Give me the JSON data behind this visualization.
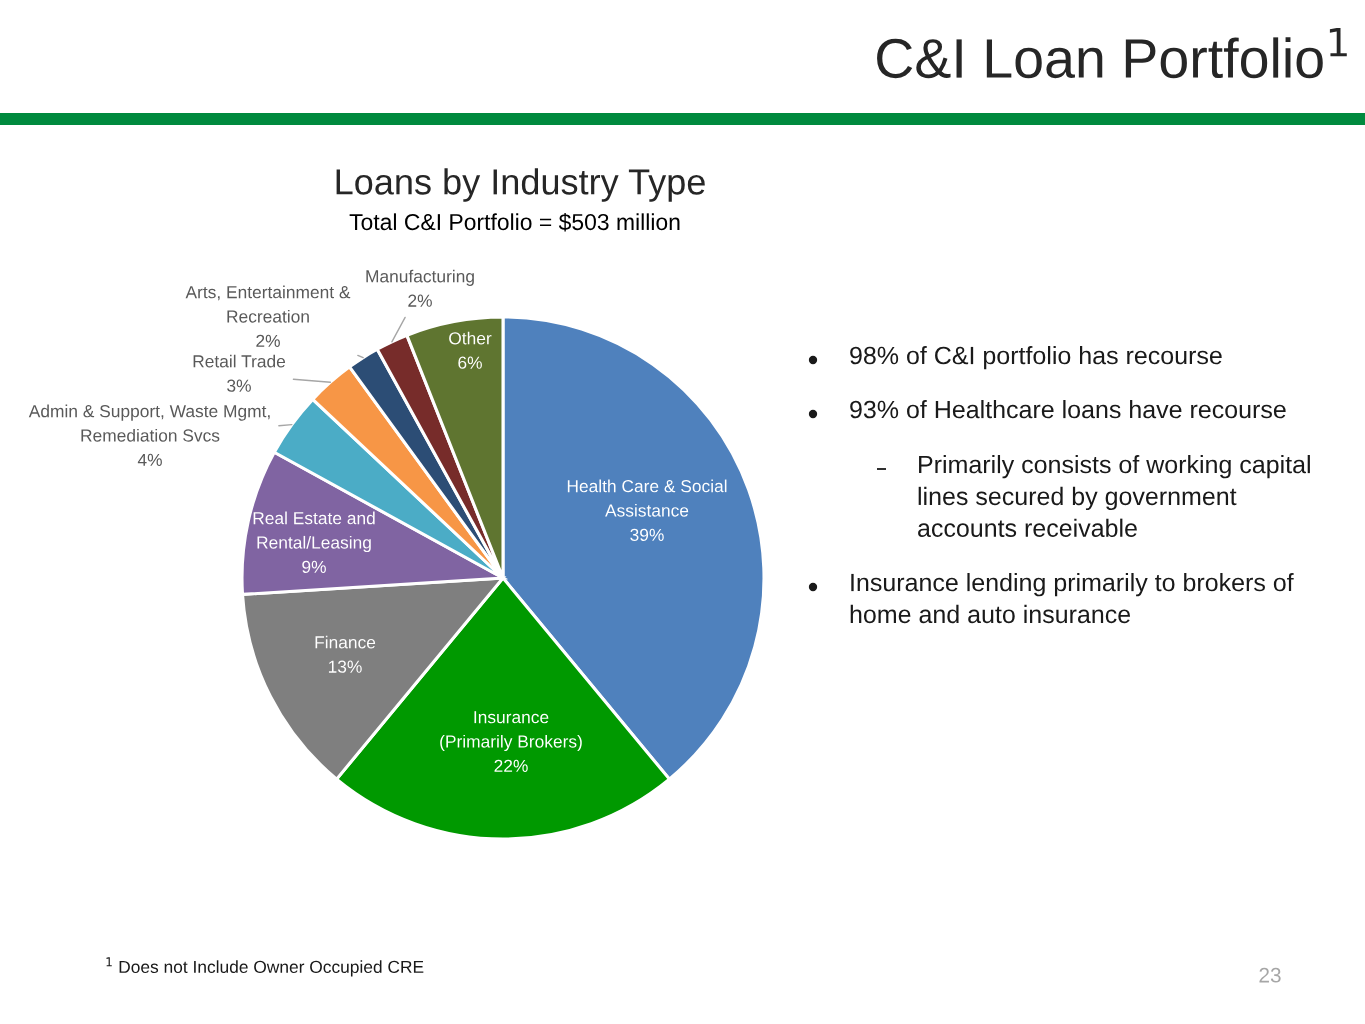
{
  "chart_data": {
    "type": "pie",
    "title": "Loans by Industry Type",
    "subtitle": "Total C&I Portfolio = $503 million",
    "categories": [
      "Health Care & Social\nAssistance",
      "Insurance\n(Primarily Brokers)",
      "Finance",
      "Real Estate and\nRental/Leasing",
      "Admin & Support, Waste Mgmt,\nRemediation Svcs",
      "Retail Trade",
      "Arts, Entertainment &\nRecreation",
      "Manufacturing",
      "Other"
    ],
    "values": [
      39,
      22,
      13,
      9,
      4,
      3,
      2,
      2,
      6
    ],
    "value_labels": [
      "39%",
      "22%",
      "13%",
      "9%",
      "4%",
      "3%",
      "2%",
      "2%",
      "6%"
    ],
    "colors": [
      "#4f81bd",
      "#009900",
      "#7f7f7f",
      "#8064a2",
      "#4bacc6",
      "#f79646",
      "#2c4d75",
      "#772c2a",
      "#5f7530"
    ],
    "annotations": [
      "C&I Loan Portfolio$^{1}$",
      "98% of C&I portfolio has recourse",
      "93% of Healthcare loans have recourse",
      "Primarily consists of working capital\nlines secured by government\naccounts receivable",
      "Insurance lending primarily to brokers of\nhome and auto insurance",
      "$^{1}$ Does not Include Owner Occupied CRE",
      "23"
    ]
  }
}
